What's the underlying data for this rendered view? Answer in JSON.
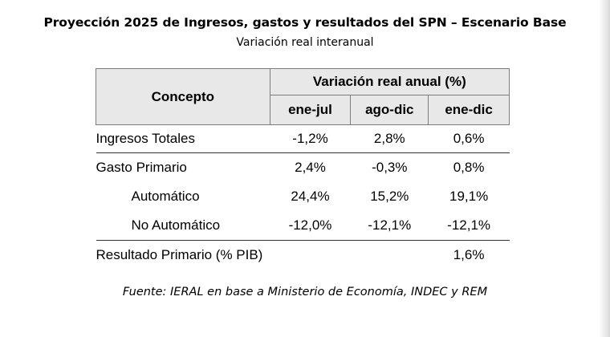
{
  "title": "Proyección 2025 de Ingresos, gastos y resultados del SPN – Escenario Base",
  "subtitle": "Variación real interanual",
  "table": {
    "concept_header": "Concepto",
    "group_header": "Variación real anual (%)",
    "columns": [
      "ene-jul",
      "ago-dic",
      "ene-dic"
    ],
    "rows": [
      {
        "label": "Ingresos Totales",
        "values": [
          "-1,2%",
          "2,8%",
          "0,6%"
        ]
      },
      {
        "label": "Gasto Primario",
        "values": [
          "2,4%",
          "-0,3%",
          "0,8%"
        ]
      },
      {
        "label": "Automático",
        "values": [
          "24,4%",
          "15,2%",
          "19,1%"
        ]
      },
      {
        "label": "No Automático",
        "values": [
          "-12,0%",
          "-12,1%",
          "-12,1%"
        ]
      },
      {
        "label": "Resultado Primario (% PIB)",
        "values": [
          "",
          "",
          "1,6%"
        ]
      }
    ]
  },
  "source": "Fuente: IERAL en base a Ministerio de Economía, INDEC y REM"
}
